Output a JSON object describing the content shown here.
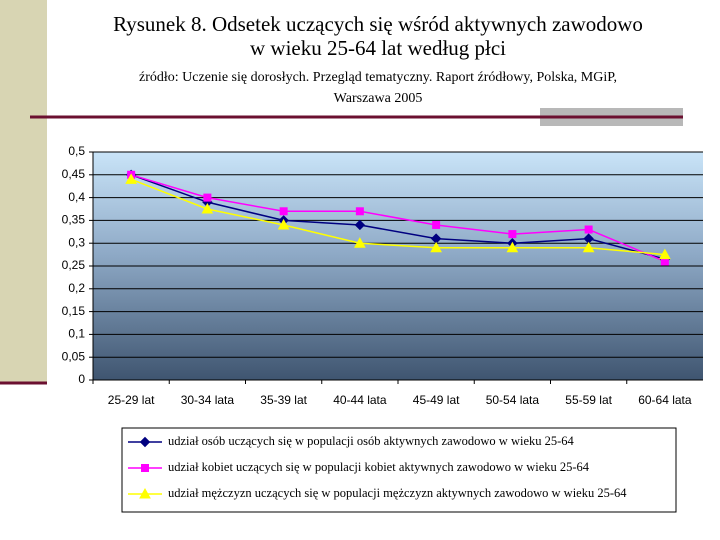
{
  "chart_data": {
    "type": "line",
    "title": [
      "Rysunek 8. Odsetek uczących się wśród aktywnych zawodowo",
      "w wieku 25-64 lat według płci"
    ],
    "subtitle": [
      "źródło: Uczenie się dorosłych. Przegląd tematyczny. Raport źródłowy, Polska, MGiP,",
      "Warszawa 2005"
    ],
    "categories": [
      "25-29 lat",
      "30-34 lata",
      "35-39 lat",
      "40-44 lata",
      "45-49 lat",
      "50-54 lata",
      "55-59 lat",
      "60-64 lata"
    ],
    "series": [
      {
        "name": "udział osób uczących się w populacji osób aktywnych zawodowo w wieku 25-64",
        "color": "#000080",
        "marker": "diamond",
        "values": [
          0.45,
          0.39,
          0.35,
          0.34,
          0.31,
          0.3,
          0.31,
          0.265
        ]
      },
      {
        "name": "udział kobiet uczących się w populacji kobiet aktywnych zawodowo w wieku 25-64",
        "color": "#ff00ff",
        "marker": "square",
        "values": [
          0.45,
          0.4,
          0.37,
          0.37,
          0.34,
          0.32,
          0.33,
          0.26
        ]
      },
      {
        "name": "udział mężczyzn uczących się w populacji mężczyzn aktywnych zawodowo w wieku 25-64",
        "color": "#ffff00",
        "marker": "triangle",
        "values": [
          0.44,
          0.375,
          0.34,
          0.3,
          0.29,
          0.29,
          0.29,
          0.275
        ]
      }
    ],
    "ylim": [
      0,
      0.5
    ],
    "yticks": [
      0,
      {
        "value": 0.05,
        "label": "0,05"
      },
      {
        "value": 0.1,
        "label": "0,1"
      },
      {
        "value": 0.15,
        "label": "0,15"
      },
      {
        "value": 0.2,
        "label": "0,2"
      },
      {
        "value": 0.25,
        "label": "0,25"
      },
      {
        "value": 0.3,
        "label": "0,3"
      },
      {
        "value": 0.35,
        "label": "0,35"
      },
      {
        "value": 0.4,
        "label": "0,4"
      },
      {
        "value": 0.45,
        "label": "0,45"
      },
      {
        "value": 0.5,
        "label": "0,5"
      }
    ],
    "grid": true
  }
}
